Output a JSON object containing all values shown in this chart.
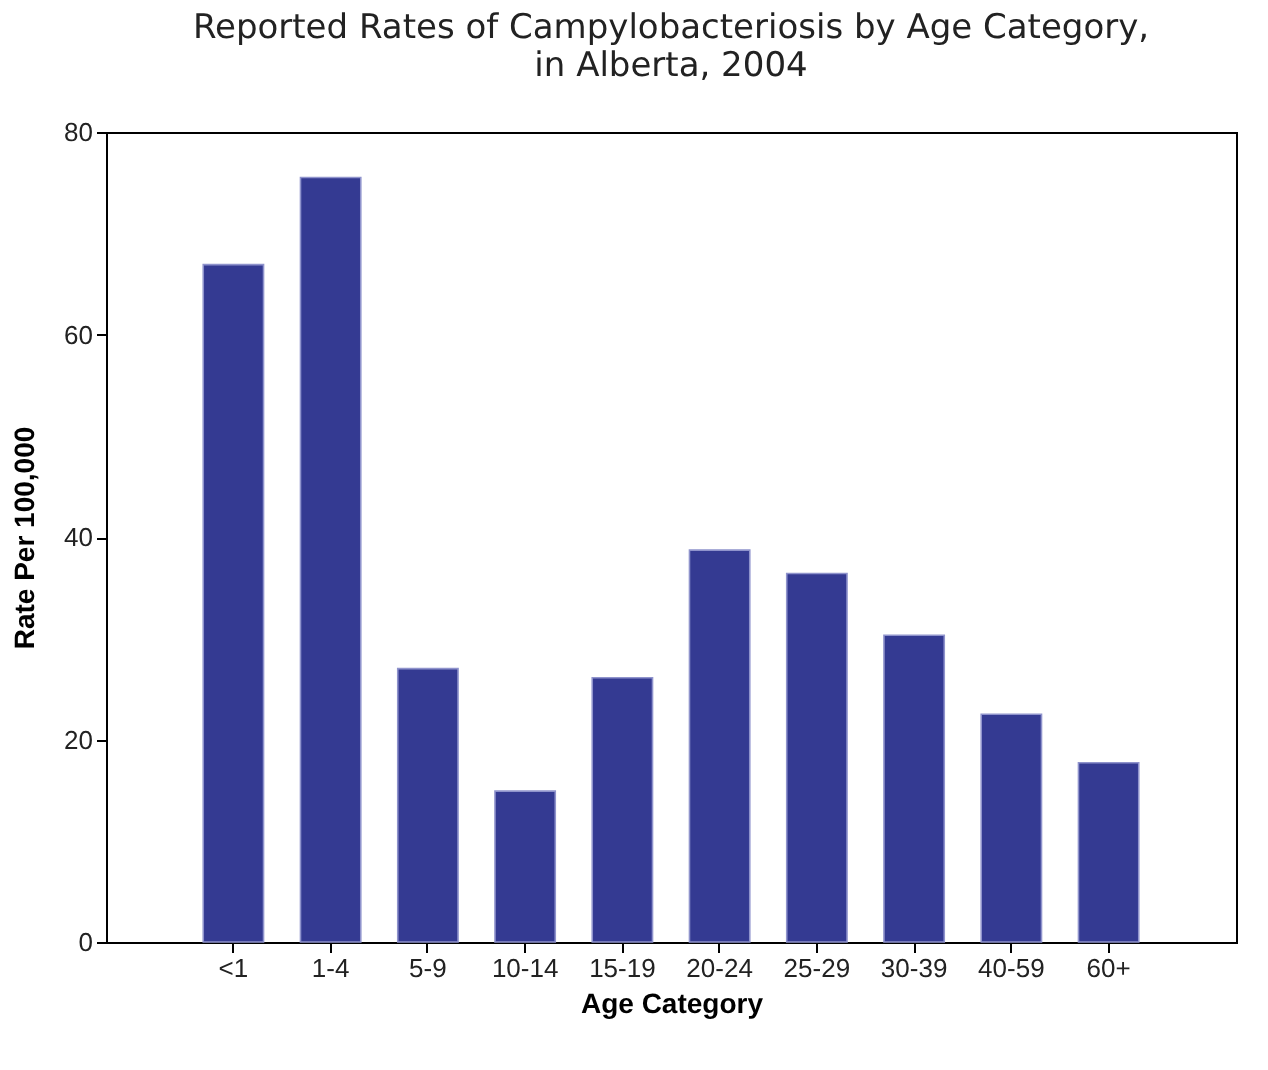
{
  "chart_data": {
    "type": "bar",
    "title": "Reported Rates of Campylobacteriosis by Age Category,\nin Alberta, 2004",
    "xlabel": "Age Category",
    "ylabel": "Rate Per 100,000",
    "categories": [
      "<1",
      "1-4",
      "5-9",
      "10-14",
      "15-19",
      "20-24",
      "25-29",
      "30-39",
      "40-59",
      "60+"
    ],
    "values": [
      66.9,
      75.5,
      27.0,
      14.9,
      26.1,
      38.7,
      36.4,
      30.3,
      22.5,
      17.7
    ],
    "color": "#343a92",
    "ylim": [
      0,
      80
    ],
    "yticks": [
      0,
      20,
      40,
      60,
      80
    ],
    "grid": false
  }
}
